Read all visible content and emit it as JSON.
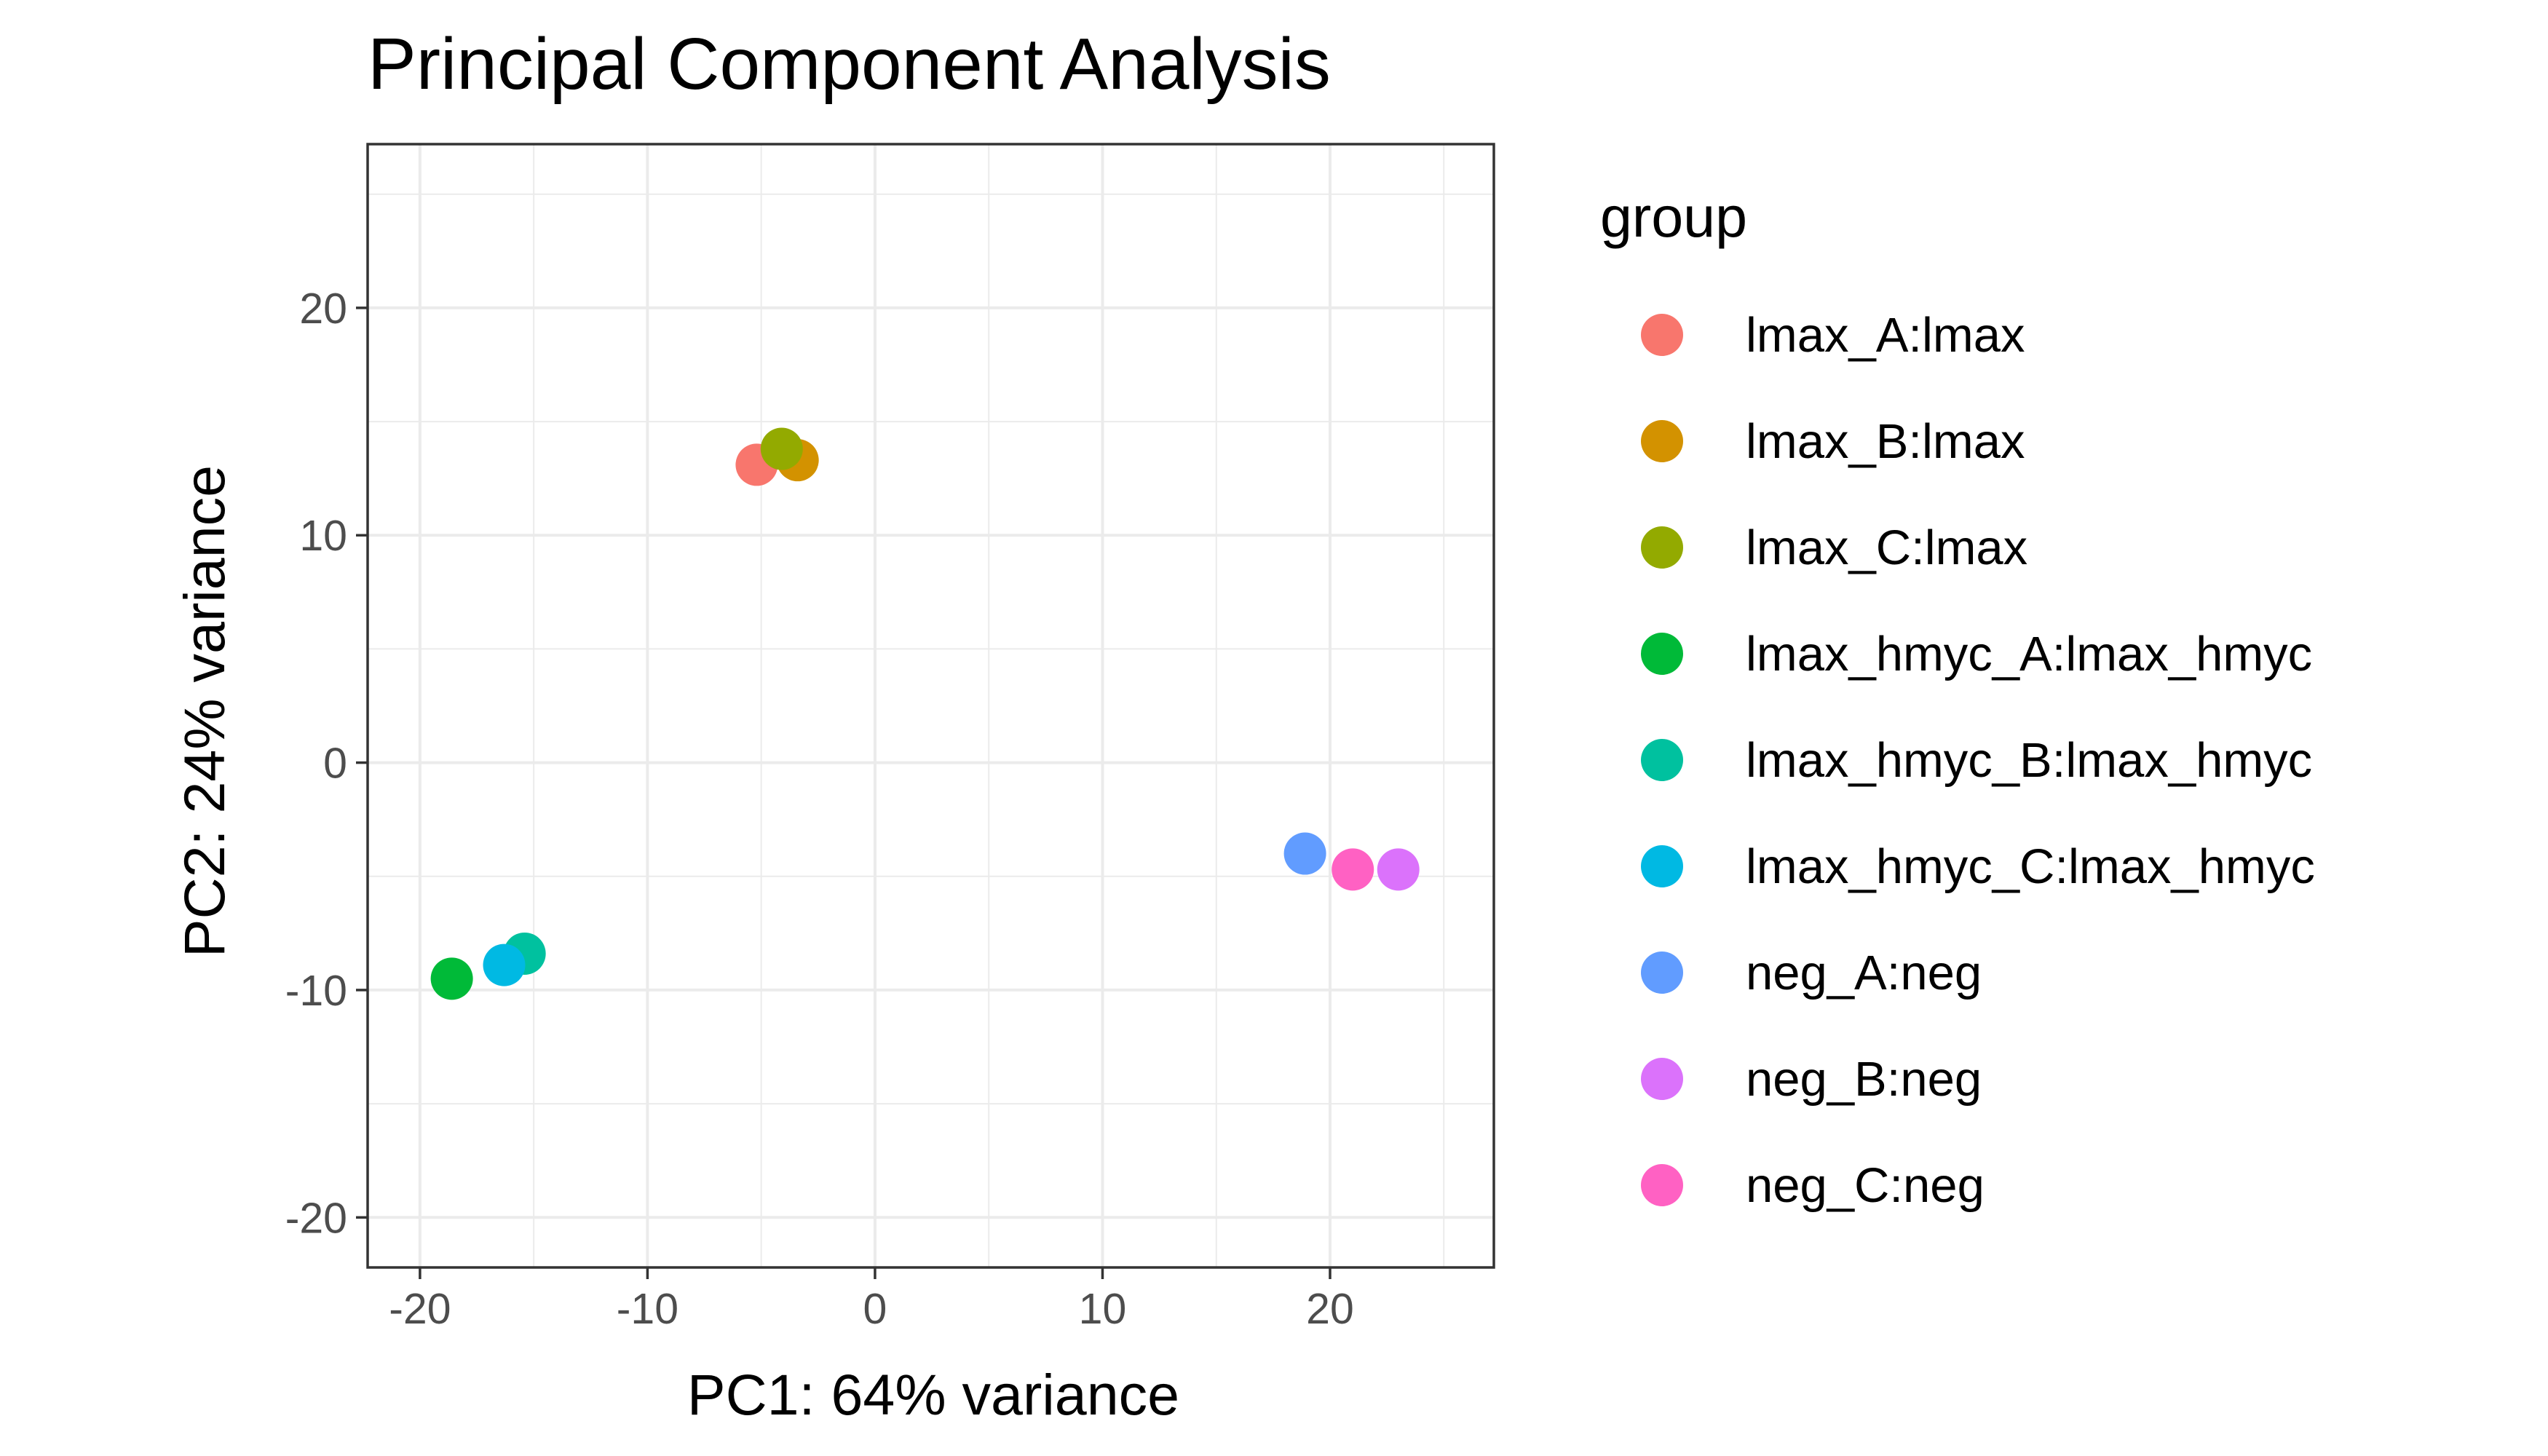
{
  "chart_data": {
    "type": "scatter",
    "title": "Principal Component Analysis",
    "xlabel": "PC1: 64% variance",
    "ylabel": "PC2: 24% variance",
    "xlim": [
      -22.3,
      27.2
    ],
    "ylim": [
      -22.2,
      27.2
    ],
    "x_ticks": [
      -20,
      -10,
      0,
      10,
      20
    ],
    "y_ticks": [
      -20,
      -10,
      0,
      10,
      20
    ],
    "grid": true,
    "legend": {
      "title": "group",
      "position": "right"
    },
    "series": [
      {
        "name": "lmax_A:lmax",
        "color": "#F8766D",
        "points": [
          {
            "x": -5.2,
            "y": 13.1
          }
        ]
      },
      {
        "name": "lmax_B:lmax",
        "color": "#D39200",
        "points": [
          {
            "x": -3.4,
            "y": 13.3
          }
        ]
      },
      {
        "name": "lmax_C:lmax",
        "color": "#93AA00",
        "points": [
          {
            "x": -4.1,
            "y": 13.8
          }
        ]
      },
      {
        "name": "lmax_hmyc_A:lmax_hmyc",
        "color": "#00BA38",
        "points": [
          {
            "x": -18.6,
            "y": -9.5
          }
        ]
      },
      {
        "name": "lmax_hmyc_B:lmax_hmyc",
        "color": "#00C19F",
        "points": [
          {
            "x": -15.4,
            "y": -8.4
          }
        ]
      },
      {
        "name": "lmax_hmyc_C:lmax_hmyc",
        "color": "#00B9E3",
        "points": [
          {
            "x": -16.3,
            "y": -8.9
          }
        ]
      },
      {
        "name": "neg_A:neg",
        "color": "#619CFF",
        "points": [
          {
            "x": 18.9,
            "y": -4.0
          }
        ]
      },
      {
        "name": "neg_B:neg",
        "color": "#DB72FB",
        "points": [
          {
            "x": 23.0,
            "y": -4.7
          }
        ]
      },
      {
        "name": "neg_C:neg",
        "color": "#FF61C3",
        "points": [
          {
            "x": 21.0,
            "y": -4.7
          }
        ]
      }
    ]
  }
}
